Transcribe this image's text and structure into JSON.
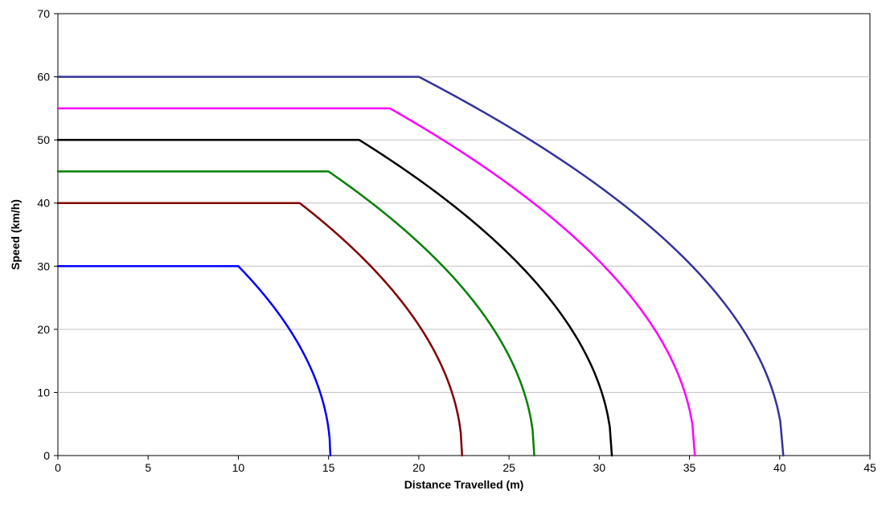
{
  "chart_data": {
    "type": "line",
    "title": "",
    "xlabel": "Distance Travelled (m)",
    "ylabel": "Speed (km/h)",
    "xlim": [
      0,
      45
    ],
    "ylim": [
      0,
      70
    ],
    "x_ticks": [
      0,
      5,
      10,
      15,
      20,
      25,
      30,
      35,
      40,
      45
    ],
    "y_ticks": [
      0,
      10,
      20,
      30,
      40,
      50,
      60,
      70
    ],
    "grid": "horizontal",
    "legend": "none",
    "series": [
      {
        "color": "#0000ff",
        "cruise_speed": 30,
        "reaction_distance": 10.0,
        "stop_distance": 15.1
      },
      {
        "color": "#800000",
        "cruise_speed": 40,
        "reaction_distance": 13.4,
        "stop_distance": 22.4
      },
      {
        "color": "#008000",
        "cruise_speed": 45,
        "reaction_distance": 15.0,
        "stop_distance": 26.4
      },
      {
        "color": "#000000",
        "cruise_speed": 50,
        "reaction_distance": 16.7,
        "stop_distance": 30.7
      },
      {
        "color": "#ff00ff",
        "cruise_speed": 55,
        "reaction_distance": 18.4,
        "stop_distance": 35.3
      },
      {
        "color": "#333399",
        "cruise_speed": 60,
        "reaction_distance": 20.0,
        "stop_distance": 40.2
      }
    ]
  }
}
